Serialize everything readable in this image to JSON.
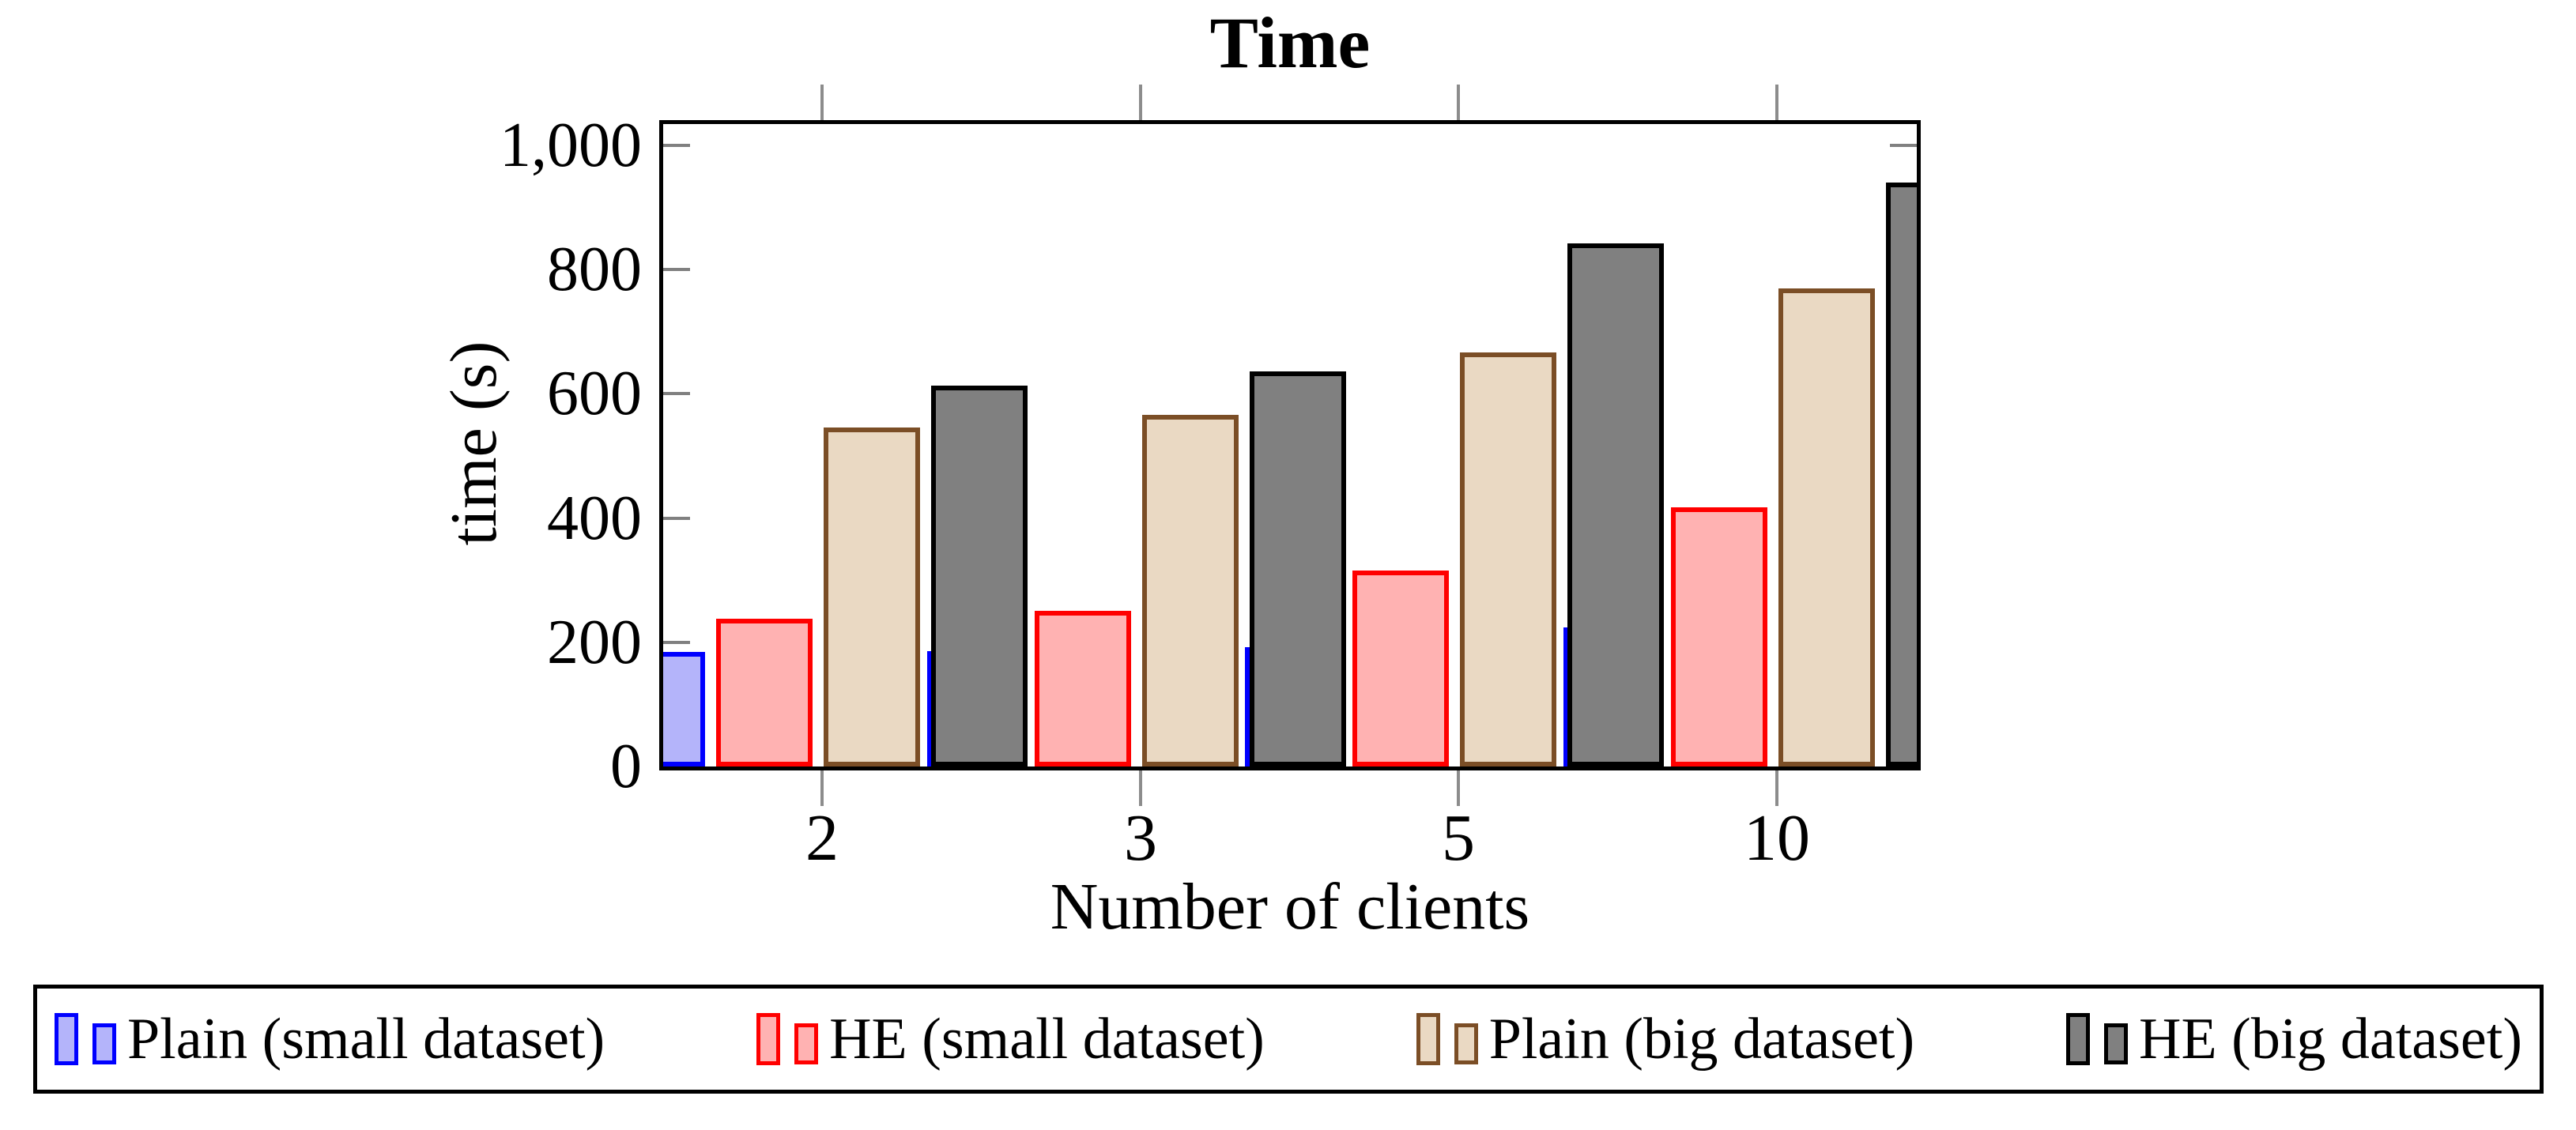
{
  "chart_data": {
    "type": "bar",
    "title": "Time",
    "xlabel": "Number of clients",
    "ylabel": "time (s)",
    "categories": [
      "2",
      "3",
      "5",
      "10"
    ],
    "series": [
      {
        "name": "Plain (small dataset)",
        "fill": "#b4b4fa",
        "border": "#0000ff",
        "values": [
          185,
          186,
          192,
          224
        ]
      },
      {
        "name": "HE (small dataset)",
        "fill": "#ffb2b2",
        "border": "#ff0000",
        "values": [
          238,
          250,
          316,
          417
        ]
      },
      {
        "name": "Plain (big dataset)",
        "fill": "#ead9c3",
        "border": "#7b4e26",
        "values": [
          546,
          566,
          667,
          770
        ]
      },
      {
        "name": "HE (big dataset)",
        "fill": "#808080",
        "border": "#000000",
        "values": [
          613,
          636,
          842,
          940
        ]
      }
    ],
    "ylim": [
      0,
      1040
    ],
    "yticks": {
      "values": [
        0,
        200,
        400,
        600,
        800,
        1000
      ],
      "labels": [
        "0",
        "200",
        "400",
        "600",
        "800",
        "1,000"
      ]
    },
    "grid": false,
    "legend_position": "below-chart",
    "frame_color": "#000000",
    "tick_color": "#808080"
  }
}
